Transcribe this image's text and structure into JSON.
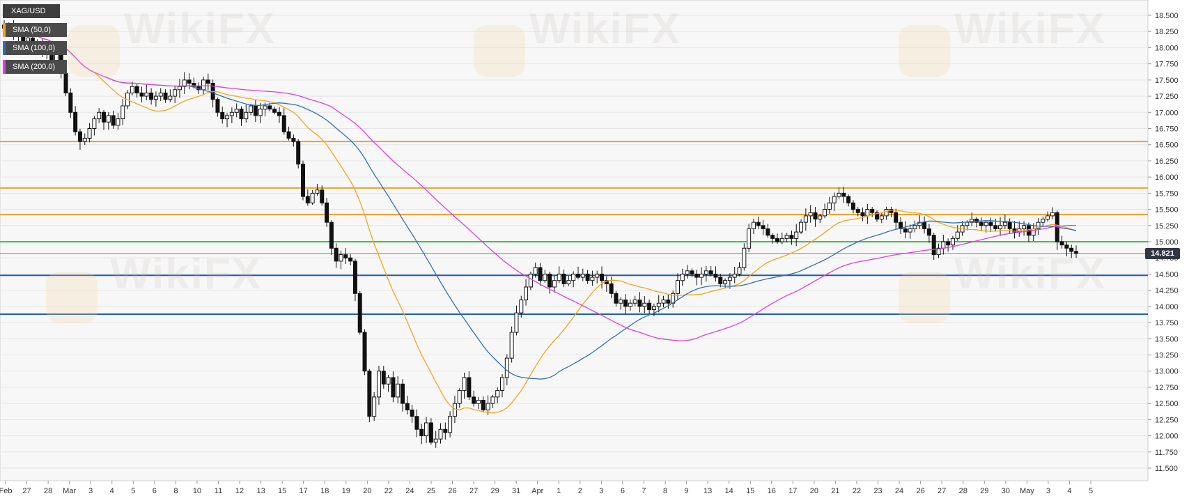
{
  "chart_data": {
    "type": "candlestick",
    "symbol": "XAG/USD",
    "legend": [
      {
        "label": "SMA (50,0)",
        "color": "#f5a31a"
      },
      {
        "label": "SMA (100,0)",
        "color": "#2f6fb5"
      },
      {
        "label": "SMA (200,0)",
        "color": "#e23ce0"
      }
    ],
    "last_price": "14.821",
    "ylim": [
      11.5,
      18.5
    ],
    "y_ticks": [
      "18.500",
      "18.250",
      "18.000",
      "17.750",
      "17.500",
      "17.250",
      "17.000",
      "16.750",
      "16.500",
      "16.250",
      "16.000",
      "15.750",
      "15.500",
      "15.250",
      "15.000",
      "14.750",
      "14.500",
      "14.250",
      "14.000",
      "13.750",
      "13.500",
      "13.250",
      "13.000",
      "12.750",
      "12.500",
      "12.250",
      "12.000",
      "11.750",
      "11.500"
    ],
    "x_ticks": [
      "Feb",
      "27",
      "28",
      "Mar",
      "3",
      "4",
      "5",
      "6",
      "8",
      "10",
      "11",
      "12",
      "13",
      "15",
      "17",
      "18",
      "19",
      "20",
      "22",
      "24",
      "25",
      "26",
      "27",
      "29",
      "31",
      "Apr",
      "1",
      "2",
      "3",
      "6",
      "7",
      "8",
      "9",
      "13",
      "14",
      "15",
      "16",
      "17",
      "20",
      "21",
      "22",
      "23",
      "24",
      "26",
      "27",
      "28",
      "29",
      "30",
      "May",
      "3",
      "4",
      "5"
    ],
    "horizontal_levels": [
      {
        "value": 16.55,
        "color": "#f0a030"
      },
      {
        "value": 15.83,
        "color": "#f0a030"
      },
      {
        "value": 15.42,
        "color": "#f0a030"
      },
      {
        "value": 15.0,
        "color": "#33cc33"
      },
      {
        "value": 14.48,
        "color": "#1f5fa8"
      },
      {
        "value": 13.88,
        "color": "#1f5fa8"
      }
    ],
    "watermark": "WikiFX",
    "closes": [
      18.3,
      18.35,
      18.2,
      18.25,
      18.1,
      18.15,
      18.0,
      18.05,
      17.9,
      17.95,
      17.8,
      17.9,
      17.6,
      17.3,
      17.0,
      16.7,
      16.55,
      16.6,
      16.75,
      16.9,
      17.0,
      16.85,
      16.95,
      16.8,
      16.9,
      17.1,
      17.3,
      17.4,
      17.3,
      17.25,
      17.3,
      17.2,
      17.25,
      17.3,
      17.2,
      17.25,
      17.35,
      17.4,
      17.5,
      17.45,
      17.4,
      17.35,
      17.5,
      17.45,
      17.2,
      17.0,
      16.9,
      16.95,
      17.0,
      17.05,
      16.9,
      17.0,
      17.1,
      16.95,
      17.05,
      17.1,
      17.05,
      17.0,
      16.95,
      16.7,
      16.6,
      16.55,
      16.2,
      15.7,
      15.6,
      15.75,
      15.8,
      15.6,
      15.3,
      14.9,
      14.7,
      14.8,
      14.75,
      14.7,
      14.2,
      13.6,
      13.0,
      12.3,
      12.6,
      13.0,
      12.8,
      12.9,
      12.6,
      12.8,
      12.5,
      12.4,
      12.3,
      12.1,
      12.0,
      12.2,
      11.9,
      11.95,
      12.1,
      12.05,
      12.3,
      12.5,
      12.7,
      12.9,
      12.6,
      12.5,
      12.55,
      12.4,
      12.5,
      12.6,
      12.7,
      12.9,
      13.2,
      13.6,
      13.9,
      14.1,
      14.3,
      14.5,
      14.6,
      14.4,
      14.5,
      14.3,
      14.4,
      14.5,
      14.35,
      14.4,
      14.5,
      14.45,
      14.5,
      14.4,
      14.45,
      14.5,
      14.4,
      14.35,
      14.2,
      14.05,
      14.1,
      14.0,
      14.05,
      14.1,
      14.0,
      14.05,
      13.95,
      14.0,
      14.05,
      14.1,
      14.05,
      14.2,
      14.4,
      14.5,
      14.55,
      14.5,
      14.45,
      14.5,
      14.55,
      14.5,
      14.45,
      14.35,
      14.4,
      14.45,
      14.5,
      14.6,
      14.9,
      15.2,
      15.3,
      15.25,
      15.2,
      15.1,
      15.05,
      15.0,
      15.05,
      15.1,
      15.05,
      15.15,
      15.3,
      15.4,
      15.45,
      15.35,
      15.4,
      15.5,
      15.6,
      15.7,
      15.75,
      15.7,
      15.6,
      15.5,
      15.45,
      15.4,
      15.5,
      15.45,
      15.35,
      15.4,
      15.5,
      15.45,
      15.3,
      15.2,
      15.15,
      15.2,
      15.25,
      15.3,
      15.2,
      15.1,
      14.8,
      14.9,
      15.0,
      14.95,
      15.05,
      15.15,
      15.25,
      15.3,
      15.35,
      15.3,
      15.25,
      15.3,
      15.25,
      15.2,
      15.25,
      15.3,
      15.2,
      15.15,
      15.2,
      15.25,
      15.1,
      15.2,
      15.3,
      15.35,
      15.4,
      15.45,
      15.0,
      14.95,
      14.9,
      14.85,
      14.82
    ]
  }
}
